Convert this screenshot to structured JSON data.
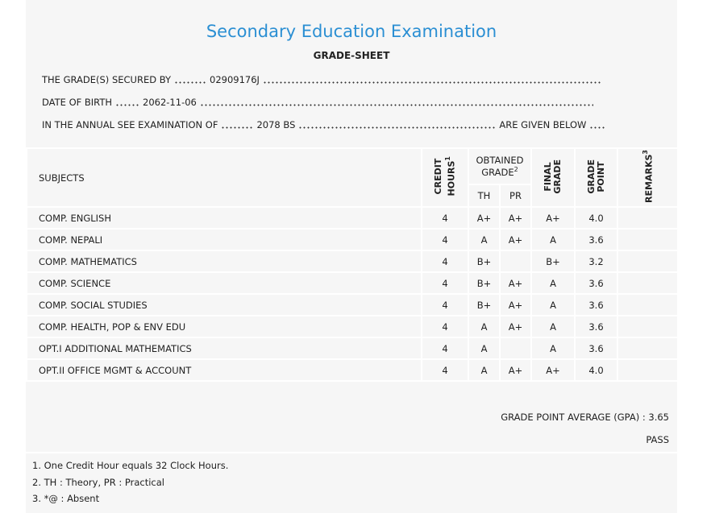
{
  "header": {
    "title": "Secondary Education Examination",
    "subtitle": "GRADE-SHEET"
  },
  "details": [
    {
      "label": "THE GRADE(S) SECURED BY",
      "value": "02909176J"
    },
    {
      "label": "DATE OF BIRTH",
      "value": "2062-11-06"
    },
    {
      "label": "IN THE ANNUAL SEE EXAMINATION OF",
      "value": "2078 BS",
      "suffix": "ARE GIVEN BELOW"
    }
  ],
  "table": {
    "headers": {
      "subjects": "SUBJECTS",
      "credit_hours": {
        "line1": "CREDIT",
        "line2": "HOURS",
        "note": "1"
      },
      "obtained_grade": {
        "line1": "OBTAINED",
        "line2": "GRADE",
        "note": "2",
        "th": "TH",
        "pr": "PR"
      },
      "final_grade": {
        "line1": "FINAL",
        "line2": "GRADE"
      },
      "grade_point": {
        "line1": "GRADE",
        "line2": "POINT"
      },
      "remarks": {
        "text": "REMARKS",
        "note": "3"
      }
    },
    "rows": [
      [
        "COMP. ENGLISH",
        "4",
        "A+",
        "A+",
        "A+",
        "4.0"
      ],
      [
        "COMP. NEPALI",
        "4",
        "A",
        "A+",
        "A",
        "3.6"
      ],
      [
        "COMP. MATHEMATICS",
        "4",
        "B+",
        null,
        "B+",
        "3.2"
      ],
      [
        "COMP. SCIENCE",
        "4",
        "B+",
        "A+",
        "A",
        "3.6"
      ],
      [
        "COMP. SOCIAL STUDIES",
        "4",
        "B+",
        "A+",
        "A",
        "3.6"
      ],
      [
        "COMP. HEALTH, POP & ENV EDU",
        "4",
        "A",
        "A+",
        "A",
        "3.6"
      ],
      [
        "OPT.I ADDITIONAL MATHEMATICS",
        "4",
        "A",
        null,
        "A",
        "3.6"
      ],
      [
        "OPT.II OFFICE MGMT & ACCOUNT",
        "4",
        "A",
        "A+",
        "A+",
        "4.0"
      ]
    ]
  },
  "summary": {
    "gpa_label": "GRADE POINT AVERAGE (GPA) :",
    "gpa": "3.65",
    "result": "PASS"
  },
  "footnotes": [
    "1. One Credit Hour equals 32 Clock Hours.",
    "2. TH : Theory, PR : Practical",
    "3. *@ : Absent"
  ]
}
